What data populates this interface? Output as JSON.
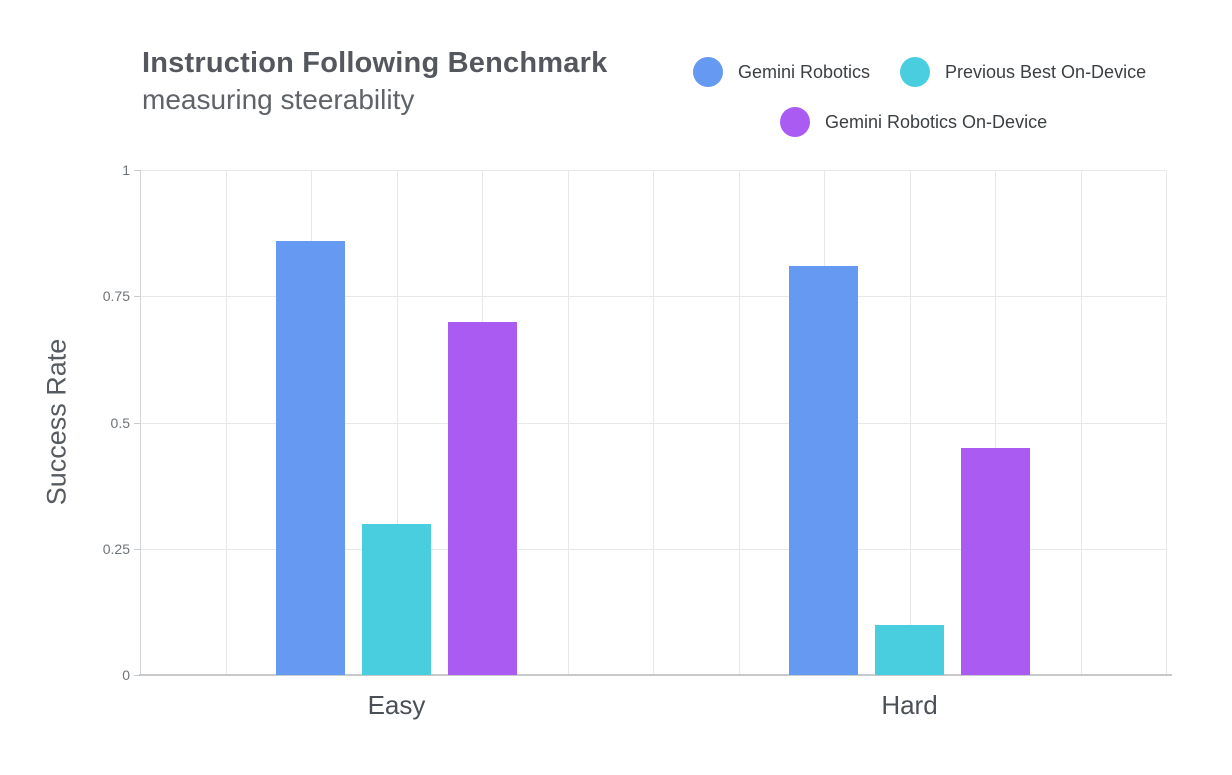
{
  "header": {
    "title": "Instruction Following Benchmark",
    "subtitle": "measuring steerability"
  },
  "legend": {
    "items": [
      {
        "label": "Gemini Robotics",
        "color": "#6699f2"
      },
      {
        "label": "Previous Best On-Device",
        "color": "#49cee0"
      },
      {
        "label": "Gemini Robotics On-Device",
        "color": "#aa5cf2"
      }
    ]
  },
  "chart_data": {
    "type": "bar",
    "title": "Instruction Following Benchmark",
    "subtitle": "measuring steerability",
    "categories": [
      "Easy",
      "Hard"
    ],
    "series": [
      {
        "name": "Gemini Robotics",
        "color": "#6699f2",
        "values": [
          0.86,
          0.81
        ]
      },
      {
        "name": "Previous Best On-Device",
        "color": "#49cee0",
        "values": [
          0.3,
          0.1
        ]
      },
      {
        "name": "Gemini Robotics On-Device",
        "color": "#aa5cf2",
        "values": [
          0.7,
          0.45
        ]
      }
    ],
    "xlabel": "",
    "ylabel": "Success Rate",
    "ylim": [
      0,
      1
    ],
    "yticks": [
      0,
      0.25,
      0.5,
      0.75,
      1
    ],
    "ytick_labels": [
      "0",
      "0.25",
      "0.5",
      "0.75",
      "1"
    ],
    "grid": true,
    "legend_position": "top-right"
  }
}
